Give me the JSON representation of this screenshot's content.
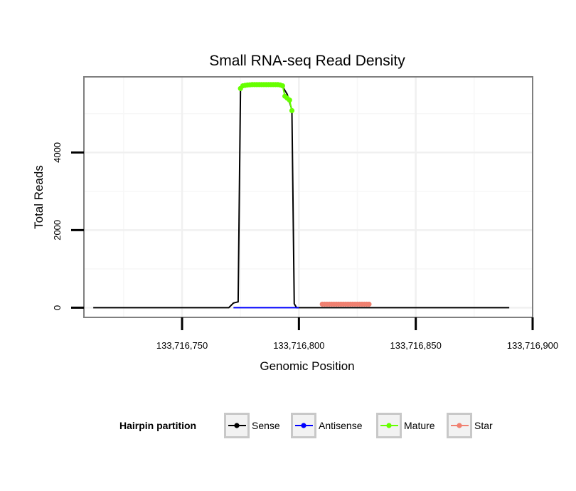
{
  "chart_data": {
    "type": "line",
    "title": "Small RNA-seq Read Density",
    "xlabel": "Genomic Position",
    "ylabel": "Total Reads",
    "xlim": [
      133716708,
      133716900
    ],
    "ylim": [
      -250,
      5950
    ],
    "x_ticks": [
      133716750,
      133716800,
      133716850,
      133716900
    ],
    "x_tick_labels": [
      "133,716,750",
      "133,716,800",
      "133,716,850",
      "133,716,900"
    ],
    "y_ticks": [
      0,
      2000,
      4000
    ],
    "y_tick_labels": [
      "0",
      "2000",
      "4000"
    ],
    "grid": true,
    "legend": {
      "title": "Hairpin partition",
      "position": "bottom",
      "entries": [
        {
          "name": "Sense",
          "color": "#000000"
        },
        {
          "name": "Antisense",
          "color": "#0000ff"
        },
        {
          "name": "Mature",
          "color": "#66ff00"
        },
        {
          "name": "Star",
          "color": "#f08070"
        }
      ]
    },
    "series": [
      {
        "name": "Sense",
        "color": "#000000",
        "points": [
          [
            133716712,
            0
          ],
          [
            133716770,
            0
          ],
          [
            133716772,
            120
          ],
          [
            133716774,
            150
          ],
          [
            133716775,
            5600
          ],
          [
            133716776,
            5700
          ],
          [
            133716780,
            5730
          ],
          [
            133716790,
            5740
          ],
          [
            133716793,
            5700
          ],
          [
            133716795,
            5500
          ],
          [
            133716797,
            5100
          ],
          [
            133716798,
            100
          ],
          [
            133716799,
            0
          ],
          [
            133716890,
            0
          ]
        ]
      },
      {
        "name": "Antisense",
        "color": "#0000ff",
        "points": [
          [
            133716772,
            0
          ],
          [
            133716800,
            0
          ]
        ]
      },
      {
        "name": "Mature",
        "color": "#66ff00",
        "points": [
          [
            133716775,
            5650
          ],
          [
            133716776,
            5720
          ],
          [
            133716777,
            5730
          ],
          [
            133716778,
            5740
          ],
          [
            133716779,
            5745
          ],
          [
            133716780,
            5750
          ],
          [
            133716781,
            5750
          ],
          [
            133716782,
            5750
          ],
          [
            133716783,
            5750
          ],
          [
            133716784,
            5750
          ],
          [
            133716785,
            5750
          ],
          [
            133716786,
            5750
          ],
          [
            133716787,
            5750
          ],
          [
            133716788,
            5750
          ],
          [
            133716789,
            5750
          ],
          [
            133716790,
            5750
          ],
          [
            133716791,
            5750
          ],
          [
            133716792,
            5740
          ],
          [
            133716793,
            5720
          ],
          [
            133716794,
            5450
          ],
          [
            133716795,
            5400
          ],
          [
            133716796,
            5350
          ],
          [
            133716797,
            5080
          ]
        ]
      },
      {
        "name": "Star",
        "color": "#f08070",
        "points": [
          [
            133716810,
            90
          ],
          [
            133716811,
            90
          ],
          [
            133716812,
            90
          ],
          [
            133716813,
            90
          ],
          [
            133716814,
            90
          ],
          [
            133716815,
            90
          ],
          [
            133716816,
            90
          ],
          [
            133716817,
            90
          ],
          [
            133716818,
            90
          ],
          [
            133716819,
            90
          ],
          [
            133716820,
            90
          ],
          [
            133716821,
            90
          ],
          [
            133716822,
            90
          ],
          [
            133716823,
            90
          ],
          [
            133716824,
            90
          ],
          [
            133716825,
            90
          ],
          [
            133716826,
            90
          ],
          [
            133716827,
            90
          ],
          [
            133716828,
            90
          ],
          [
            133716829,
            90
          ],
          [
            133716830,
            90
          ]
        ]
      }
    ]
  }
}
